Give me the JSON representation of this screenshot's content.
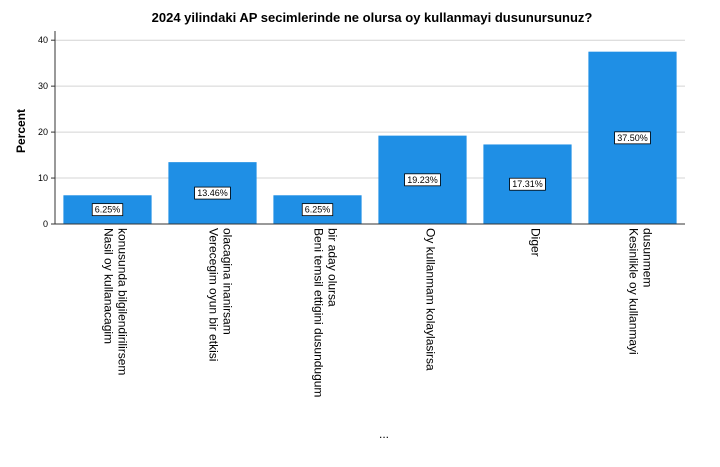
{
  "chart_data": {
    "type": "bar",
    "title": "2024 yilindaki AP secimlerinde ne olursa oy kullanmayi dusunursunuz?",
    "ylabel": "Percent",
    "xlabel": "...",
    "ylim": [
      0,
      42
    ],
    "yticks": [
      0,
      10,
      20,
      30,
      40
    ],
    "grid": true,
    "bar_color": "#1f8fe5",
    "categories": [
      [
        "Nasil oy kullanacagim",
        "konusunda bilgilendirilirsem"
      ],
      [
        "Verecegim oyun bir etkisi",
        "olacagina inanirsam"
      ],
      [
        "Beni temsil ettigini dusundugum",
        "bir aday olursa"
      ],
      [
        "Oy kullanmam kolaylasirsa"
      ],
      [
        "Diger"
      ],
      [
        "Kesinlikle oy kullanmayi",
        "dusunmem"
      ]
    ],
    "values": [
      6.25,
      13.46,
      6.25,
      19.23,
      17.31,
      37.5
    ],
    "data_labels": [
      "6.25%",
      "13.46%",
      "6.25%",
      "19.23%",
      "17.31%",
      "37.50%"
    ]
  }
}
